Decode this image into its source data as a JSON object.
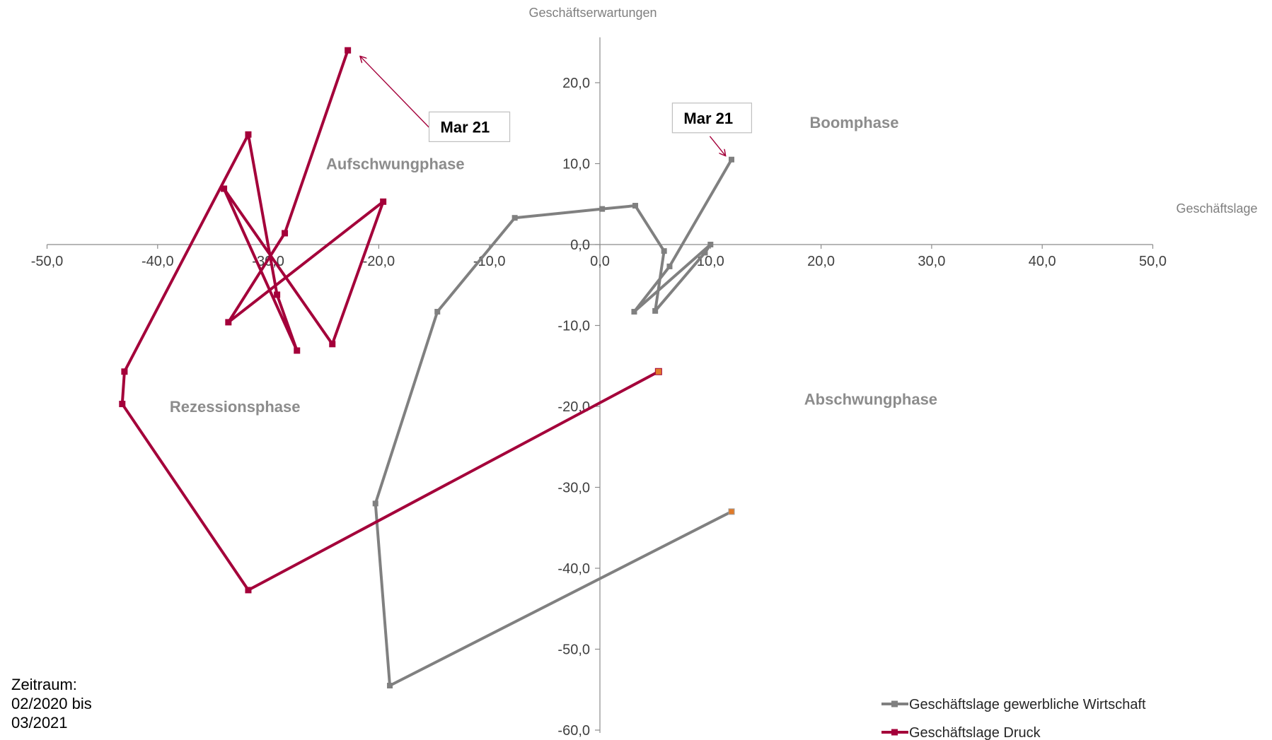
{
  "chart_data": {
    "type": "scatter",
    "xlabel": "Geschäftslage",
    "ylabel": "Geschäftserwartungen",
    "xlim": [
      -50,
      50
    ],
    "ylim": [
      -60,
      25
    ],
    "x_ticks": [
      "-50,0",
      "-40,0",
      "-30,0",
      "-20,0",
      "-10,0",
      "0,0",
      "10,0",
      "20,0",
      "30,0",
      "40,0",
      "50,0"
    ],
    "y_ticks": [
      "20,0",
      "10,0",
      "0,0",
      "-10,0",
      "-20,0",
      "-30,0",
      "-40,0",
      "-50,0",
      "-60,0"
    ],
    "x_tick_values": [
      -50,
      -40,
      -30,
      -20,
      -10,
      0,
      10,
      20,
      30,
      40,
      50
    ],
    "y_tick_values": [
      20,
      10,
      0,
      -10,
      -20,
      -30,
      -40,
      -50,
      -60
    ],
    "phases": [
      {
        "label": "Aufschwungphase",
        "x": -18.5,
        "y": 9.3
      },
      {
        "label": "Boomphase",
        "x": 23.0,
        "y": 14.4
      },
      {
        "label": "Rezessionsphase",
        "x": -33.0,
        "y": -20.7
      },
      {
        "label": "Abschwungphase",
        "x": 24.5,
        "y": -19.8
      }
    ],
    "series": [
      {
        "name": "Geschäftslage  gewerbliche Wirtschaft",
        "color": "#808080",
        "start_color": "#e07b2a",
        "points": [
          [
            11.9,
            -33.0
          ],
          [
            -19.0,
            -54.5
          ],
          [
            -20.3,
            -32.0
          ],
          [
            -14.7,
            -8.3
          ],
          [
            -7.7,
            3.3
          ],
          [
            0.2,
            4.4
          ],
          [
            3.2,
            4.8
          ],
          [
            5.8,
            -0.8
          ],
          [
            5.0,
            -8.2
          ],
          [
            9.5,
            -1.0
          ],
          [
            10.0,
            0.0
          ],
          [
            3.1,
            -8.3
          ],
          [
            6.3,
            -2.7
          ],
          [
            11.9,
            10.5
          ]
        ]
      },
      {
        "name": "Geschäftslage Druck",
        "color": "#a4003a",
        "start_color": "#e07b2a",
        "points": [
          [
            5.3,
            -15.7
          ],
          [
            -31.8,
            -42.7
          ],
          [
            -43.2,
            -19.7
          ],
          [
            -43.0,
            -15.7
          ],
          [
            -31.8,
            13.6
          ],
          [
            -29.2,
            -6.2
          ],
          [
            -27.4,
            -13.1
          ],
          [
            -34.0,
            6.9
          ],
          [
            -24.2,
            -12.3
          ],
          [
            -19.6,
            5.3
          ],
          [
            -33.6,
            -9.6
          ],
          [
            -28.5,
            1.4
          ],
          [
            -22.8,
            24.0
          ]
        ]
      }
    ],
    "callouts": [
      {
        "label": "Mar 21",
        "series": 1,
        "target": [
          -22.8,
          24.0
        ],
        "box": [
          -15.0,
          14.2
        ]
      },
      {
        "label": "Mar 21",
        "series": 0,
        "target": [
          11.9,
          10.5
        ],
        "box": [
          7.0,
          15.3
        ]
      }
    ],
    "legend": {
      "placement": "bottom-right"
    },
    "grid": false
  },
  "footnote": [
    "Zeitraum:",
    "02/2020 bis",
    "03/2021"
  ]
}
